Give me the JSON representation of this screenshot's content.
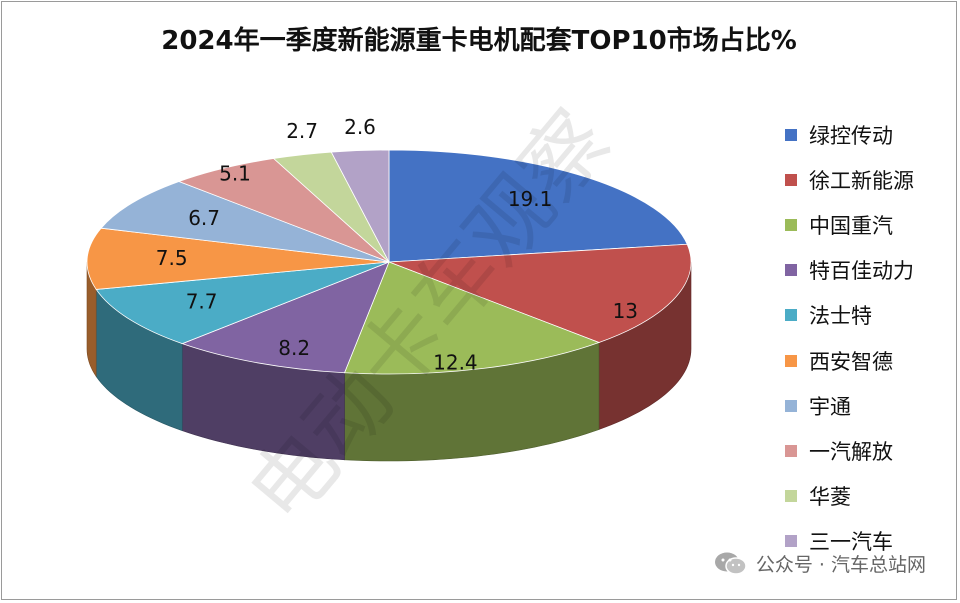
{
  "chart_data": {
    "type": "pie",
    "title": "2024年一季度新能源重卡电机配套TOP10市场占比%",
    "categories": [
      "绿控传动",
      "徐工新能源",
      "中国重汽",
      "特百佳动力",
      "法士特",
      "西安智德",
      "宇通",
      "一汽解放",
      "华菱",
      "三一汽车"
    ],
    "values": [
      19.1,
      13,
      12.4,
      8.2,
      7.7,
      7.5,
      6.7,
      5.1,
      2.7,
      2.6
    ],
    "value_labels": [
      "19.1",
      "13",
      "12.4",
      "8.2",
      "7.7",
      "7.5",
      "6.7",
      "5.1",
      "2.7",
      "2.6"
    ],
    "colors": [
      "#4472c4",
      "#c0504d",
      "#9bbb59",
      "#8064a2",
      "#4bacc6",
      "#f79646",
      "#95b3d7",
      "#d99694",
      "#c3d69b",
      "#b2a2c7"
    ],
    "legend_position": "right",
    "style": "3d-tilted"
  },
  "watermark": "电动卡车观察",
  "footer": {
    "icon": "wechat-icon",
    "text": "公众号 · 汽车总站网"
  }
}
